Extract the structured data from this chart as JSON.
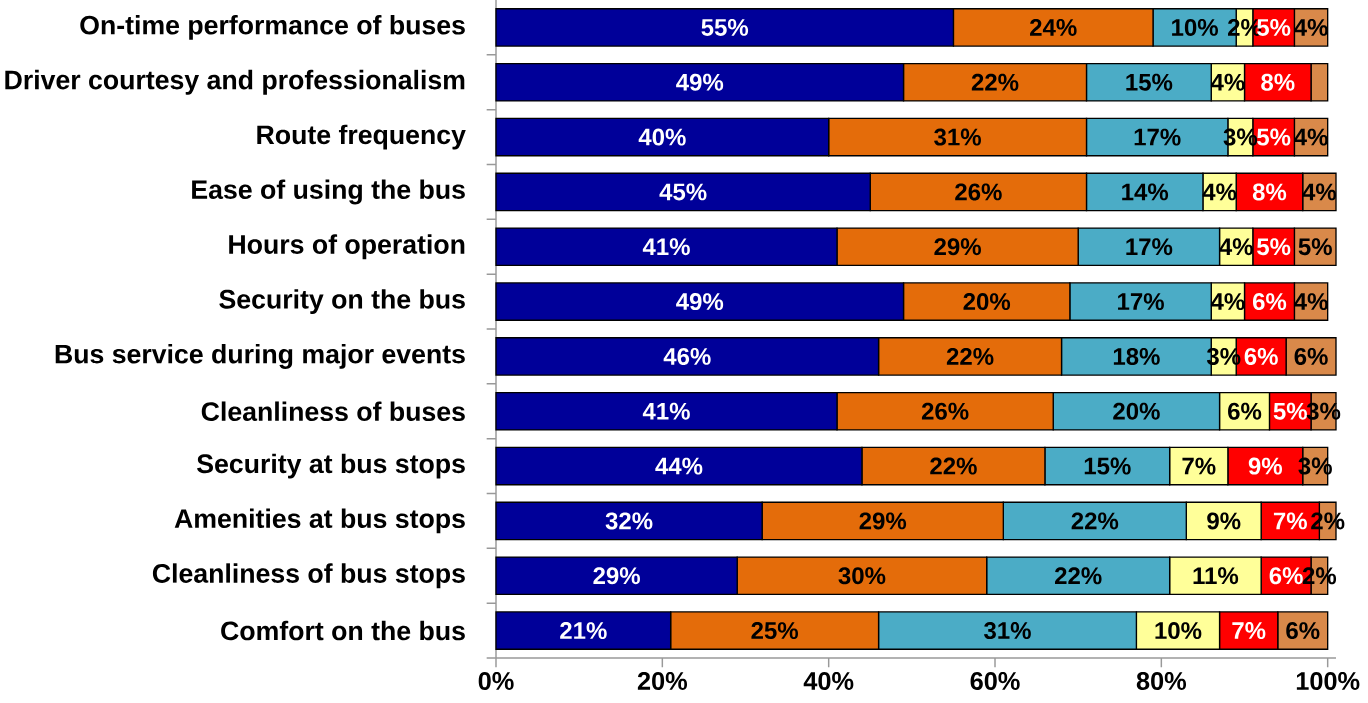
{
  "chart_data": {
    "type": "bar",
    "orientation": "horizontal",
    "stacked": true,
    "categories": [
      "On-time performance of buses",
      "Driver courtesy and professionalism",
      "Route frequency",
      "Ease of using the bus",
      "Hours of operation",
      "Security on the bus",
      "Bus service during major events",
      "Cleanliness of buses",
      "Security at bus stops",
      "Amenities at bus stops",
      "Cleanliness of bus stops",
      "Comfort on the bus"
    ],
    "series": [
      {
        "color": "#000099",
        "values": [
          55,
          49,
          40,
          45,
          41,
          49,
          46,
          41,
          44,
          32,
          29,
          21
        ],
        "value_labels": [
          "55%",
          "49%",
          "40%",
          "45%",
          "41%",
          "49%",
          "46%",
          "41%",
          "44%",
          "32%",
          "29%",
          "21%"
        ]
      },
      {
        "color": "#e46c0a",
        "values": [
          24,
          22,
          31,
          26,
          29,
          20,
          22,
          26,
          22,
          29,
          30,
          25
        ],
        "value_labels": [
          "24%",
          "22%",
          "31%",
          "26%",
          "29%",
          "20%",
          "22%",
          "26%",
          "22%",
          "29%",
          "30%",
          "25%"
        ]
      },
      {
        "color": "#4bacc6",
        "values": [
          10,
          15,
          17,
          14,
          17,
          17,
          18,
          20,
          15,
          22,
          22,
          31
        ],
        "value_labels": [
          "10%",
          "15%",
          "17%",
          "14%",
          "17%",
          "17%",
          "18%",
          "20%",
          "15%",
          "22%",
          "22%",
          "31%"
        ]
      },
      {
        "color": "#ffff99",
        "values": [
          2,
          4,
          3,
          4,
          4,
          4,
          3,
          6,
          7,
          9,
          11,
          10
        ],
        "value_labels": [
          "2%",
          "4%",
          "3%",
          "4%",
          "4%",
          "4%",
          "3%",
          "6%",
          "7%",
          "9%",
          "11%",
          "10%"
        ]
      },
      {
        "color": "#ff0000",
        "values": [
          5,
          8,
          5,
          8,
          5,
          6,
          6,
          5,
          9,
          7,
          6,
          7
        ],
        "value_labels": [
          "5%",
          "8%",
          "5%",
          "8%",
          "5%",
          "6%",
          "6%",
          "5%",
          "9%",
          "7%",
          "6%",
          "7%"
        ]
      },
      {
        "color": "#d9894a",
        "values": [
          4,
          2,
          4,
          4,
          5,
          4,
          6,
          3,
          3,
          2,
          2,
          6
        ],
        "value_labels": [
          "4%",
          null,
          "4%",
          "4%",
          "5%",
          "4%",
          "6%",
          "3%",
          "3%",
          "2%",
          "2%",
          "6%"
        ]
      }
    ],
    "xlim": [
      0,
      101
    ],
    "xticks": [
      {
        "value": 0,
        "label": "0%"
      },
      {
        "value": 20,
        "label": "20%"
      },
      {
        "value": 40,
        "label": "40%"
      },
      {
        "value": 60,
        "label": "60%"
      },
      {
        "value": 80,
        "label": "80%"
      },
      {
        "value": 100,
        "label": "100%"
      }
    ]
  }
}
